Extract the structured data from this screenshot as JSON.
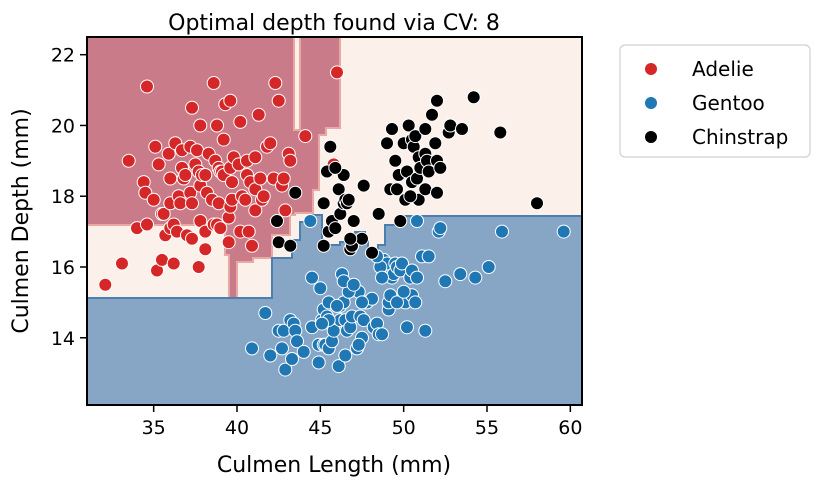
{
  "chart_data": {
    "type": "scatter",
    "title": "Optimal depth found via CV: 8",
    "xlabel": "Culmen Length (mm)",
    "ylabel": "Culmen Depth (mm)",
    "xlim": [
      31,
      60.7
    ],
    "ylim": [
      12.1,
      22.5
    ],
    "xticks": [
      35,
      40,
      45,
      50,
      55,
      60
    ],
    "yticks": [
      14,
      16,
      18,
      20,
      22
    ],
    "grid": false,
    "legend_position": "outside-right",
    "colors": {
      "Adelie": "#d62728",
      "Gentoo": "#1f77b4",
      "Chinstrap": "#000000",
      "region_adelie": "#c97b89",
      "region_gentoo": "#87a6c5",
      "region_chinstrap": "#fbf0ea"
    },
    "series": [
      {
        "name": "Adelie",
        "points": [
          [
            32.1,
            15.5
          ],
          [
            33.1,
            16.1
          ],
          [
            33.5,
            19.0
          ],
          [
            34.0,
            17.1
          ],
          [
            34.4,
            18.4
          ],
          [
            34.5,
            18.1
          ],
          [
            34.6,
            21.1
          ],
          [
            34.6,
            17.2
          ],
          [
            35.0,
            17.9
          ],
          [
            35.1,
            19.4
          ],
          [
            35.2,
            15.9
          ],
          [
            35.3,
            18.9
          ],
          [
            35.5,
            16.2
          ],
          [
            35.5,
            17.5
          ],
          [
            35.6,
            17.5
          ],
          [
            35.7,
            16.9
          ],
          [
            35.9,
            19.2
          ],
          [
            36.0,
            17.1
          ],
          [
            36.0,
            18.5
          ],
          [
            36.0,
            17.8
          ],
          [
            36.2,
            17.2
          ],
          [
            36.2,
            16.1
          ],
          [
            36.3,
            19.5
          ],
          [
            36.4,
            17.0
          ],
          [
            36.5,
            18.0
          ],
          [
            36.6,
            17.8
          ],
          [
            36.7,
            19.3
          ],
          [
            36.7,
            18.8
          ],
          [
            36.8,
            18.5
          ],
          [
            36.9,
            18.6
          ],
          [
            37.0,
            16.9
          ],
          [
            37.2,
            18.1
          ],
          [
            37.2,
            19.4
          ],
          [
            37.3,
            20.5
          ],
          [
            37.3,
            17.8
          ],
          [
            37.3,
            16.8
          ],
          [
            37.5,
            18.9
          ],
          [
            37.6,
            19.3
          ],
          [
            37.7,
            18.7
          ],
          [
            37.7,
            16.0
          ],
          [
            37.8,
            20.0
          ],
          [
            37.8,
            18.3
          ],
          [
            37.8,
            17.3
          ],
          [
            37.9,
            18.6
          ],
          [
            38.1,
            18.6
          ],
          [
            38.1,
            17.0
          ],
          [
            38.1,
            16.5
          ],
          [
            38.2,
            18.1
          ],
          [
            38.3,
            19.2
          ],
          [
            38.5,
            17.9
          ],
          [
            38.6,
            21.2
          ],
          [
            38.6,
            17.2
          ],
          [
            38.7,
            19.0
          ],
          [
            38.8,
            17.2
          ],
          [
            38.8,
            20.0
          ],
          [
            38.9,
            18.8
          ],
          [
            38.9,
            17.8
          ],
          [
            39.0,
            17.1
          ],
          [
            39.0,
            18.7
          ],
          [
            39.1,
            18.7
          ],
          [
            39.2,
            19.6
          ],
          [
            39.2,
            18.6
          ],
          [
            39.3,
            20.6
          ],
          [
            39.5,
            17.4
          ],
          [
            39.5,
            16.7
          ],
          [
            39.6,
            17.7
          ],
          [
            39.6,
            18.8
          ],
          [
            39.6,
            20.7
          ],
          [
            39.7,
            18.4
          ],
          [
            39.7,
            17.9
          ],
          [
            39.8,
            19.1
          ],
          [
            40.1,
            18.9
          ],
          [
            40.2,
            17.0
          ],
          [
            40.2,
            20.1
          ],
          [
            40.3,
            18.0
          ],
          [
            40.5,
            17.9
          ],
          [
            40.6,
            18.6
          ],
          [
            40.6,
            19.0
          ],
          [
            40.7,
            17.0
          ],
          [
            40.8,
            18.4
          ],
          [
            40.9,
            16.6
          ],
          [
            41.1,
            17.6
          ],
          [
            41.1,
            18.2
          ],
          [
            41.1,
            19.1
          ],
          [
            41.3,
            20.3
          ],
          [
            41.4,
            18.5
          ],
          [
            41.5,
            17.9
          ],
          [
            41.6,
            18.0
          ],
          [
            41.8,
            19.4
          ],
          [
            42.0,
            19.5
          ],
          [
            42.2,
            18.5
          ],
          [
            42.3,
            21.2
          ],
          [
            42.5,
            20.7
          ],
          [
            42.7,
            18.3
          ],
          [
            42.8,
            18.5
          ],
          [
            42.9,
            17.6
          ],
          [
            43.1,
            19.2
          ],
          [
            43.2,
            19.0
          ],
          [
            44.1,
            19.7
          ],
          [
            45.8,
            18.9
          ],
          [
            46.0,
            21.5
          ]
        ]
      },
      {
        "name": "Gentoo",
        "points": [
          [
            40.9,
            13.7
          ],
          [
            41.7,
            14.7
          ],
          [
            42.0,
            13.5
          ],
          [
            42.5,
            14.2
          ],
          [
            42.7,
            13.7
          ],
          [
            42.8,
            14.2
          ],
          [
            42.9,
            13.1
          ],
          [
            43.2,
            14.5
          ],
          [
            43.3,
            13.4
          ],
          [
            43.4,
            14.4
          ],
          [
            43.5,
            14.2
          ],
          [
            43.6,
            13.9
          ],
          [
            44.0,
            13.6
          ],
          [
            44.4,
            17.3
          ],
          [
            44.5,
            14.3
          ],
          [
            44.5,
            15.7
          ],
          [
            44.9,
            13.3
          ],
          [
            44.9,
            13.8
          ],
          [
            45.0,
            15.4
          ],
          [
            45.1,
            14.5
          ],
          [
            45.2,
            13.8
          ],
          [
            45.2,
            14.8
          ],
          [
            45.3,
            13.8
          ],
          [
            45.4,
            14.6
          ],
          [
            45.5,
            13.7
          ],
          [
            45.5,
            15.0
          ],
          [
            45.7,
            13.9
          ],
          [
            45.8,
            14.2
          ],
          [
            46.1,
            13.2
          ],
          [
            46.2,
            14.5
          ],
          [
            46.2,
            14.9
          ],
          [
            46.3,
            15.8
          ],
          [
            46.4,
            15.0
          ],
          [
            46.5,
            14.5
          ],
          [
            46.5,
            13.5
          ],
          [
            46.6,
            14.2
          ],
          [
            46.8,
            14.3
          ],
          [
            46.8,
            15.4
          ],
          [
            46.9,
            14.6
          ],
          [
            47.2,
            13.7
          ],
          [
            47.3,
            15.3
          ],
          [
            47.4,
            14.6
          ],
          [
            47.5,
            14.0
          ],
          [
            47.6,
            14.5
          ],
          [
            47.7,
            15.0
          ],
          [
            47.8,
            15.0
          ],
          [
            48.1,
            15.1
          ],
          [
            48.2,
            14.3
          ],
          [
            48.4,
            14.4
          ],
          [
            48.5,
            14.1
          ],
          [
            48.7,
            14.1
          ],
          [
            48.8,
            16.2
          ],
          [
            49.0,
            16.1
          ],
          [
            49.1,
            14.8
          ],
          [
            49.1,
            15.0
          ],
          [
            49.2,
            15.2
          ],
          [
            49.3,
            15.7
          ],
          [
            49.4,
            15.8
          ],
          [
            49.5,
            16.1
          ],
          [
            49.6,
            16.0
          ],
          [
            49.8,
            15.9
          ],
          [
            49.9,
            16.1
          ],
          [
            50.0,
            15.2
          ],
          [
            50.1,
            15.0
          ],
          [
            50.2,
            14.3
          ],
          [
            50.4,
            15.7
          ],
          [
            50.5,
            15.2
          ],
          [
            50.5,
            15.9
          ],
          [
            50.7,
            15.0
          ],
          [
            50.8,
            15.7
          ],
          [
            51.1,
            16.3
          ],
          [
            51.3,
            14.2
          ],
          [
            51.5,
            16.3
          ],
          [
            52.1,
            17.0
          ],
          [
            52.2,
            17.1
          ],
          [
            52.5,
            15.6
          ],
          [
            53.4,
            15.8
          ],
          [
            54.3,
            15.7
          ],
          [
            55.1,
            16.0
          ],
          [
            55.9,
            17.0
          ],
          [
            59.6,
            17.0
          ],
          [
            48.6,
            16.0
          ],
          [
            47.5,
            15.0
          ],
          [
            46.7,
            15.3
          ],
          [
            45.5,
            14.5
          ],
          [
            49.6,
            15.0
          ],
          [
            50.0,
            15.3
          ],
          [
            46.4,
            15.6
          ],
          [
            48.4,
            16.3
          ],
          [
            45.1,
            14.4
          ],
          [
            46.9,
            16.6
          ],
          [
            47.3,
            13.8
          ],
          [
            50.8,
            17.3
          ],
          [
            47.0,
            15.5
          ],
          [
            46.0,
            14.9
          ],
          [
            48.7,
            15.7
          ]
        ]
      },
      {
        "name": "Chinstrap",
        "points": [
          [
            42.4,
            17.3
          ],
          [
            42.5,
            16.7
          ],
          [
            43.2,
            16.6
          ],
          [
            43.5,
            18.1
          ],
          [
            45.2,
            16.6
          ],
          [
            45.2,
            17.8
          ],
          [
            45.4,
            18.7
          ],
          [
            45.5,
            17.0
          ],
          [
            45.6,
            19.4
          ],
          [
            45.7,
            17.3
          ],
          [
            45.9,
            17.1
          ],
          [
            46.1,
            18.2
          ],
          [
            46.2,
            17.5
          ],
          [
            46.4,
            18.6
          ],
          [
            46.4,
            17.8
          ],
          [
            46.5,
            17.9
          ],
          [
            46.6,
            17.8
          ],
          [
            46.7,
            17.9
          ],
          [
            46.8,
            16.5
          ],
          [
            46.9,
            16.6
          ],
          [
            47.0,
            17.3
          ],
          [
            47.5,
            16.8
          ],
          [
            47.6,
            18.3
          ],
          [
            48.1,
            16.4
          ],
          [
            48.5,
            17.5
          ],
          [
            49.0,
            19.5
          ],
          [
            49.2,
            18.2
          ],
          [
            49.3,
            19.9
          ],
          [
            49.5,
            19.0
          ],
          [
            49.7,
            18.6
          ],
          [
            49.8,
            17.3
          ],
          [
            50.0,
            19.5
          ],
          [
            50.1,
            17.9
          ],
          [
            50.2,
            18.7
          ],
          [
            50.3,
            20.0
          ],
          [
            50.5,
            18.4
          ],
          [
            50.5,
            19.6
          ],
          [
            50.6,
            19.4
          ],
          [
            50.7,
            19.7
          ],
          [
            50.8,
            18.5
          ],
          [
            50.9,
            17.9
          ],
          [
            50.9,
            19.1
          ],
          [
            51.0,
            18.8
          ],
          [
            51.3,
            18.2
          ],
          [
            51.3,
            19.2
          ],
          [
            51.3,
            19.9
          ],
          [
            51.4,
            19.0
          ],
          [
            51.5,
            18.7
          ],
          [
            51.7,
            20.3
          ],
          [
            51.9,
            19.5
          ],
          [
            52.0,
            18.1
          ],
          [
            52.0,
            19.0
          ],
          [
            52.0,
            20.7
          ],
          [
            52.2,
            18.8
          ],
          [
            52.7,
            19.8
          ],
          [
            52.8,
            20.0
          ],
          [
            53.5,
            19.9
          ],
          [
            54.2,
            20.8
          ],
          [
            55.8,
            19.8
          ],
          [
            58.0,
            17.8
          ],
          [
            49.6,
            18.2
          ],
          [
            50.4,
            18.0
          ],
          [
            45.9,
            18.8
          ],
          [
            46.8,
            16.8
          ]
        ]
      }
    ]
  }
}
